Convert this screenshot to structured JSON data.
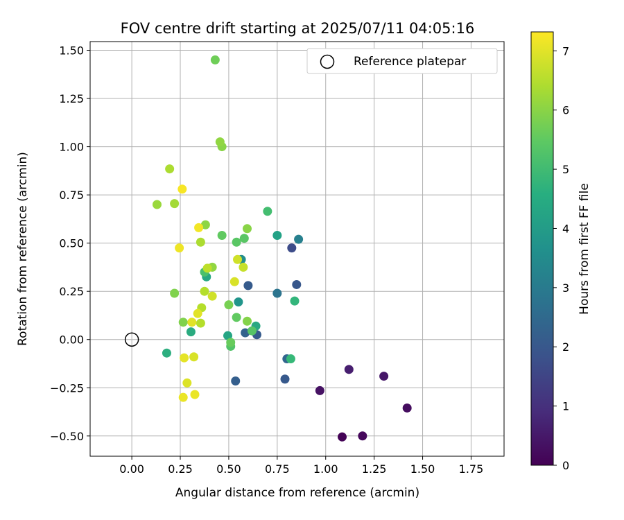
{
  "chart_data": {
    "type": "scatter",
    "title": "FOV centre drift starting at 2025/07/11 04:05:16",
    "xlabel": "Angular distance from reference (arcmin)",
    "ylabel": "Rotation from reference (arcmin)",
    "xlim": [
      -0.215,
      1.92
    ],
    "ylim": [
      -0.605,
      1.545
    ],
    "xticks": [
      0.0,
      0.25,
      0.5,
      0.75,
      1.0,
      1.25,
      1.5,
      1.75
    ],
    "xtick_labels": [
      "0.00",
      "0.25",
      "0.50",
      "0.75",
      "1.00",
      "1.25",
      "1.50",
      "1.75"
    ],
    "yticks": [
      -0.5,
      -0.25,
      0.0,
      0.25,
      0.5,
      0.75,
      1.0,
      1.25,
      1.5
    ],
    "ytick_labels": [
      "−0.50",
      "−0.25",
      "0.00",
      "0.25",
      "0.50",
      "0.75",
      "1.00",
      "1.25",
      "1.50"
    ],
    "grid": true,
    "legend": {
      "placement": "top-right",
      "entries": [
        "Reference platepar"
      ]
    },
    "reference_point": {
      "x": 0.0,
      "y": 0.0,
      "label": "Reference platepar"
    },
    "colorbar": {
      "label": "Hours from first FF file",
      "range": [
        0,
        7.32
      ],
      "ticks": [
        0,
        1,
        2,
        3,
        4,
        5,
        6,
        7
      ],
      "colormap": "viridis"
    },
    "points": [
      {
        "x": 1.085,
        "y": -0.505,
        "h": 0.05
      },
      {
        "x": 1.19,
        "y": -0.5,
        "h": 0.15
      },
      {
        "x": 1.42,
        "y": -0.355,
        "h": 0.25
      },
      {
        "x": 0.97,
        "y": -0.265,
        "h": 0.35
      },
      {
        "x": 1.3,
        "y": -0.19,
        "h": 0.45
      },
      {
        "x": 1.12,
        "y": -0.155,
        "h": 0.6
      },
      {
        "x": 0.825,
        "y": 0.475,
        "h": 1.7
      },
      {
        "x": 0.85,
        "y": 0.285,
        "h": 2.0
      },
      {
        "x": 0.79,
        "y": -0.205,
        "h": 2.05
      },
      {
        "x": 0.6,
        "y": 0.28,
        "h": 2.1
      },
      {
        "x": 0.535,
        "y": -0.215,
        "h": 2.2
      },
      {
        "x": 0.645,
        "y": 0.025,
        "h": 2.1
      },
      {
        "x": 0.585,
        "y": 0.035,
        "h": 2.3
      },
      {
        "x": 0.8,
        "y": -0.1,
        "h": 2.4
      },
      {
        "x": 0.75,
        "y": 0.24,
        "h": 2.8
      },
      {
        "x": 0.86,
        "y": 0.52,
        "h": 3.2
      },
      {
        "x": 0.565,
        "y": 0.415,
        "h": 3.6
      },
      {
        "x": 0.55,
        "y": 0.195,
        "h": 3.8
      },
      {
        "x": 0.75,
        "y": 0.54,
        "h": 4.2
      },
      {
        "x": 0.495,
        "y": 0.02,
        "h": 4.3
      },
      {
        "x": 0.64,
        "y": 0.07,
        "h": 4.4
      },
      {
        "x": 0.385,
        "y": 0.325,
        "h": 4.4
      },
      {
        "x": 0.305,
        "y": 0.04,
        "h": 4.5
      },
      {
        "x": 0.18,
        "y": -0.07,
        "h": 4.6
      },
      {
        "x": 0.84,
        "y": 0.2,
        "h": 4.8
      },
      {
        "x": 0.82,
        "y": -0.1,
        "h": 4.9
      },
      {
        "x": 0.7,
        "y": 0.665,
        "h": 5.1
      },
      {
        "x": 0.375,
        "y": 0.35,
        "h": 5.2
      },
      {
        "x": 0.51,
        "y": -0.035,
        "h": 5.3
      },
      {
        "x": 0.62,
        "y": 0.045,
        "h": 5.35
      },
      {
        "x": 0.54,
        "y": 0.505,
        "h": 5.4
      },
      {
        "x": 0.58,
        "y": 0.525,
        "h": 5.4
      },
      {
        "x": 0.54,
        "y": 0.115,
        "h": 5.5
      },
      {
        "x": 0.465,
        "y": 0.54,
        "h": 5.5
      },
      {
        "x": 0.51,
        "y": -0.015,
        "h": 5.6
      },
      {
        "x": 0.43,
        "y": 1.45,
        "h": 5.7
      },
      {
        "x": 0.5,
        "y": 0.18,
        "h": 5.8
      },
      {
        "x": 0.22,
        "y": 0.24,
        "h": 5.9
      },
      {
        "x": 0.265,
        "y": 0.09,
        "h": 5.9
      },
      {
        "x": 0.595,
        "y": 0.095,
        "h": 5.95
      },
      {
        "x": 0.595,
        "y": 0.575,
        "h": 6.0
      },
      {
        "x": 0.465,
        "y": 1.0,
        "h": 6.0
      },
      {
        "x": 0.38,
        "y": 0.595,
        "h": 6.05
      },
      {
        "x": 0.455,
        "y": 1.025,
        "h": 6.1
      },
      {
        "x": 0.415,
        "y": 0.375,
        "h": 6.1
      },
      {
        "x": 0.13,
        "y": 0.7,
        "h": 6.2
      },
      {
        "x": 0.22,
        "y": 0.705,
        "h": 6.3
      },
      {
        "x": 0.195,
        "y": 0.885,
        "h": 6.4
      },
      {
        "x": 0.355,
        "y": 0.505,
        "h": 6.4
      },
      {
        "x": 0.36,
        "y": 0.165,
        "h": 6.5
      },
      {
        "x": 0.355,
        "y": 0.085,
        "h": 6.5
      },
      {
        "x": 0.375,
        "y": 0.25,
        "h": 6.5
      },
      {
        "x": 0.39,
        "y": 0.37,
        "h": 6.6
      },
      {
        "x": 0.575,
        "y": 0.375,
        "h": 6.7
      },
      {
        "x": 0.545,
        "y": 0.415,
        "h": 6.8
      },
      {
        "x": 0.415,
        "y": 0.225,
        "h": 6.8
      },
      {
        "x": 0.53,
        "y": 0.3,
        "h": 6.9
      },
      {
        "x": 0.32,
        "y": -0.09,
        "h": 6.9
      },
      {
        "x": 0.285,
        "y": -0.225,
        "h": 6.95
      },
      {
        "x": 0.31,
        "y": 0.09,
        "h": 7.0
      },
      {
        "x": 0.34,
        "y": 0.135,
        "h": 7.0
      },
      {
        "x": 0.27,
        "y": -0.095,
        "h": 7.05
      },
      {
        "x": 0.265,
        "y": -0.3,
        "h": 7.1
      },
      {
        "x": 0.325,
        "y": -0.285,
        "h": 7.1
      },
      {
        "x": 0.245,
        "y": 0.475,
        "h": 7.15
      },
      {
        "x": 0.345,
        "y": 0.58,
        "h": 7.2
      },
      {
        "x": 0.26,
        "y": 0.78,
        "h": 7.25
      }
    ]
  }
}
